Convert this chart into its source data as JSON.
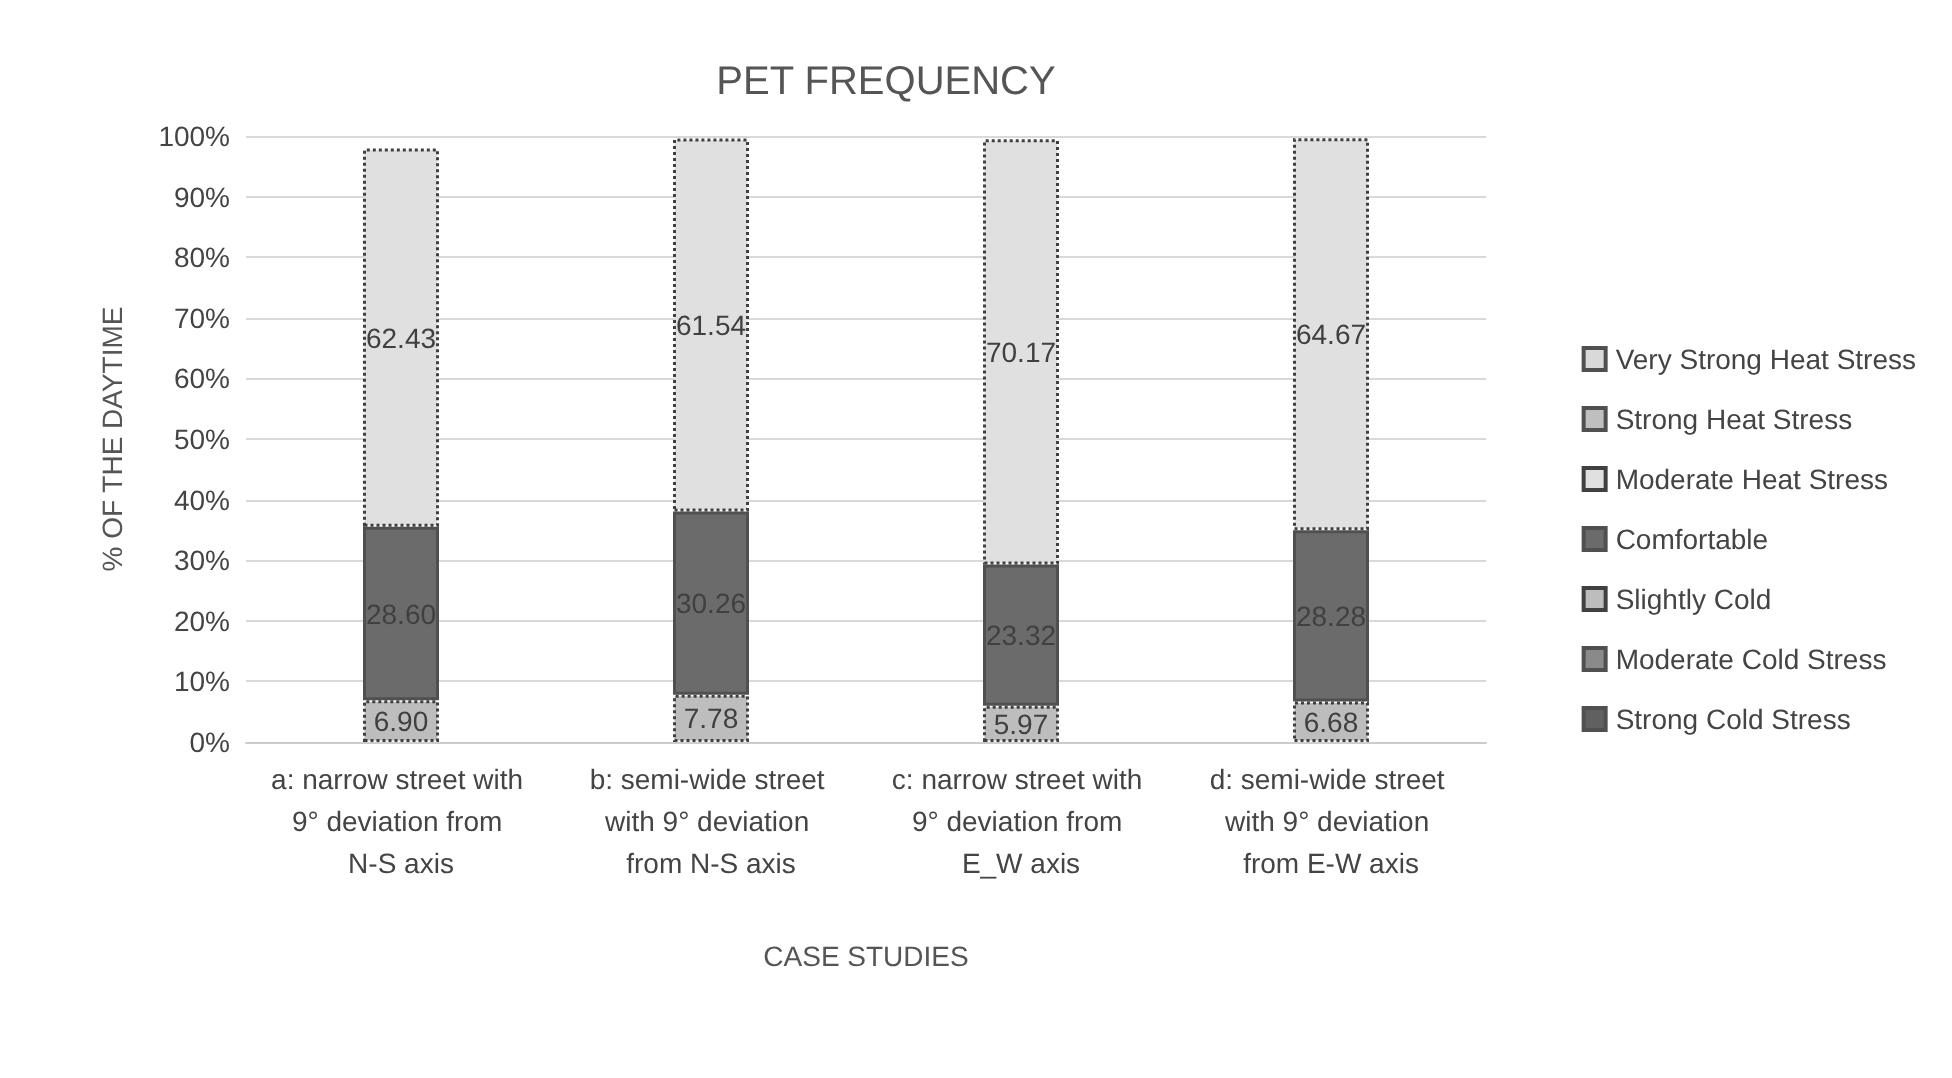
{
  "chart_data": {
    "type": "bar",
    "title": "PET FREQUENCY",
    "xlabel": "CASE STUDIES",
    "ylabel": "% OF THE DAYTIME",
    "categories": [
      "a: narrow street with 9° deviation from N-S axis",
      "b: semi-wide street with 9° deviation from N-S axis",
      "c: narrow street with 9° deviation from E_W axis",
      "d: semi-wide street with 9° deviation from E-W axis"
    ],
    "stacked": true,
    "grid": "y",
    "legend": "right",
    "ylim": [
      0,
      100
    ],
    "yticks": [
      {
        "value": 0,
        "label": "0%"
      },
      {
        "value": 10,
        "label": "10%"
      },
      {
        "value": 20,
        "label": "20%"
      },
      {
        "value": 30,
        "label": "30%"
      },
      {
        "value": 40,
        "label": "40%"
      },
      {
        "value": 50,
        "label": "50%"
      },
      {
        "value": 60,
        "label": "60%"
      },
      {
        "value": 70,
        "label": "70%"
      },
      {
        "value": 80,
        "label": "80%"
      },
      {
        "value": 90,
        "label": "90%"
      },
      {
        "value": 100,
        "label": "100%"
      }
    ],
    "series": [
      {
        "name": "Strong Cold Stress",
        "color": "#606060",
        "values": [
          null,
          null,
          null,
          null
        ]
      },
      {
        "name": "Moderate Cold Stress",
        "color": "#8a8a8a",
        "values": [
          null,
          null,
          null,
          null
        ]
      },
      {
        "name": "Slightly Cold",
        "color": "#bdbdbd",
        "line_style": "dotted",
        "values": [
          6.9,
          7.78,
          5.97,
          6.68
        ],
        "value_labels": [
          "6.90",
          "7.78",
          "5.97",
          "6.68"
        ]
      },
      {
        "name": "Comfortable",
        "color": "#6b6b6b",
        "values": [
          28.6,
          30.26,
          23.32,
          28.28
        ],
        "value_labels": [
          "28.60",
          "30.26",
          "23.32",
          "28.28"
        ]
      },
      {
        "name": "Moderate Heat Stress",
        "color": "#e0e0e0",
        "line_style": "dotted",
        "values": [
          62.43,
          61.54,
          70.17,
          64.67
        ],
        "value_labels": [
          "62.43",
          "61.54",
          "70.17",
          "64.67"
        ]
      },
      {
        "name": "Strong Heat Stress",
        "color": "#bfbfbf",
        "values": [
          null,
          null,
          null,
          null
        ]
      },
      {
        "name": "Very Strong Heat Stress",
        "color": "#d9d9d9",
        "values": [
          null,
          null,
          null,
          null
        ]
      }
    ]
  }
}
